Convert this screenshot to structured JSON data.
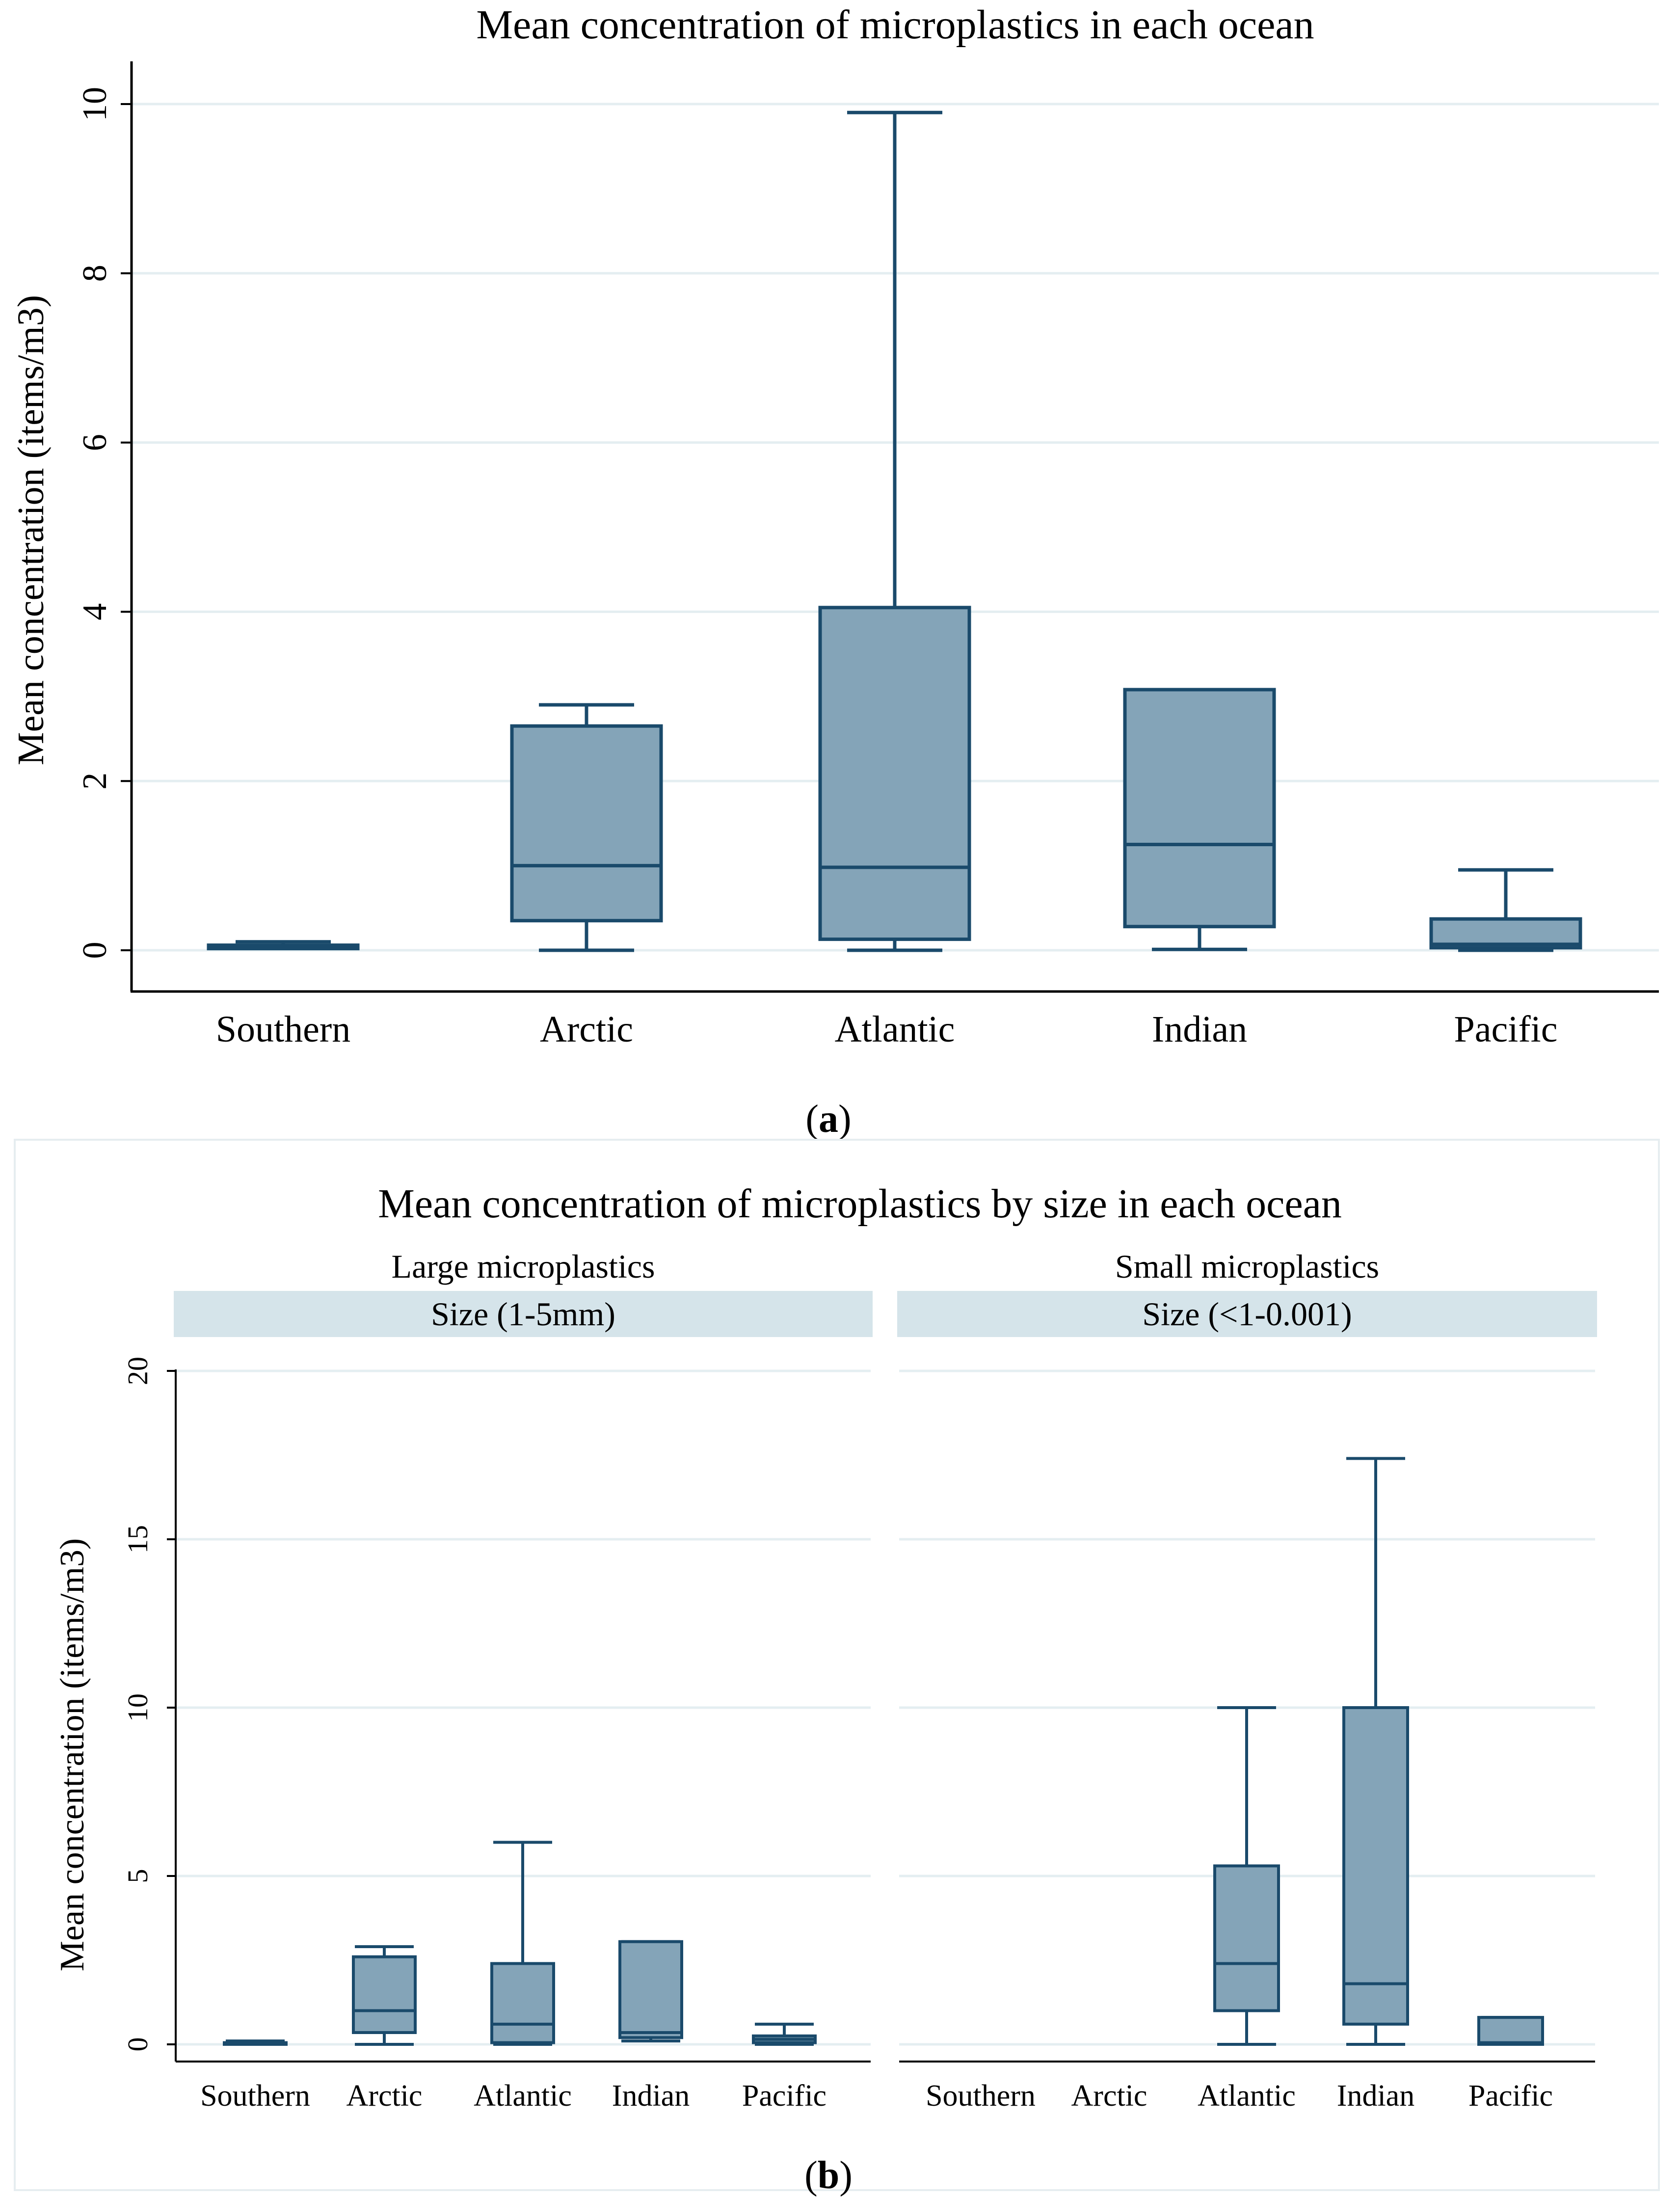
{
  "colors": {
    "box_fill": "#84a4b8",
    "box_stroke": "#1a4a6b",
    "grid": "#e4eef1",
    "strip": "#d5e4ea",
    "axis": "#000000"
  },
  "panel_labels": {
    "a": "a",
    "b": "b"
  },
  "chart_data": [
    {
      "type": "box",
      "title": "Mean concentration of microplastics in each ocean",
      "xlabel": "",
      "ylabel": "Mean concentration (items/m3)",
      "ylim": [
        0,
        10.5
      ],
      "yticks": [
        0,
        2,
        4,
        6,
        8,
        10
      ],
      "categories": [
        "Southern",
        "Arctic",
        "Atlantic",
        "Indian",
        "Pacific"
      ],
      "boxes": [
        {
          "min": 0.02,
          "q1": 0.02,
          "median": 0.04,
          "q3": 0.06,
          "max": 0.1
        },
        {
          "min": 0.0,
          "q1": 0.35,
          "median": 1.0,
          "q3": 2.65,
          "max": 2.9
        },
        {
          "min": 0.0,
          "q1": 0.13,
          "median": 0.98,
          "q3": 4.05,
          "max": 9.9
        },
        {
          "min": 0.01,
          "q1": 0.28,
          "median": 1.25,
          "q3": 3.08,
          "max": 3.08
        },
        {
          "min": 0.0,
          "q1": 0.03,
          "median": 0.07,
          "q3": 0.37,
          "max": 0.95
        }
      ]
    },
    {
      "type": "box",
      "title": "Mean concentration of microplastics by size in each ocean",
      "ylabel": "Mean concentration (items/m3)",
      "ylim": [
        0,
        20.5
      ],
      "yticks": [
        0,
        5,
        10,
        15,
        20
      ],
      "panels": [
        {
          "header": "Large microplastics",
          "strip": "Size (1-5mm)",
          "categories": [
            "Southern",
            "Arctic",
            "Atlantic",
            "Indian",
            "Pacific"
          ],
          "boxes": [
            {
              "min": 0.0,
              "q1": 0.0,
              "median": 0.02,
              "q3": 0.05,
              "max": 0.1
            },
            {
              "min": 0.0,
              "q1": 0.35,
              "median": 1.0,
              "q3": 2.6,
              "max": 2.9
            },
            {
              "min": 0.0,
              "q1": 0.05,
              "median": 0.6,
              "q3": 2.4,
              "max": 6.0
            },
            {
              "min": 0.1,
              "q1": 0.2,
              "median": 0.35,
              "q3": 3.05,
              "max": 3.05
            },
            {
              "min": 0.0,
              "q1": 0.05,
              "median": 0.15,
              "q3": 0.25,
              "max": 0.6
            }
          ]
        },
        {
          "header": "Small microplastics",
          "strip": "Size (<1-0.001)",
          "categories": [
            "Southern",
            "Arctic",
            "Atlantic",
            "Indian",
            "Pacific"
          ],
          "boxes": [
            null,
            null,
            {
              "min": 0.0,
              "q1": 1.0,
              "median": 2.4,
              "q3": 5.3,
              "max": 10.0
            },
            {
              "min": 0.0,
              "q1": 0.6,
              "median": 1.8,
              "q3": 10.0,
              "max": 17.4
            },
            {
              "min": 0.0,
              "q1": 0.0,
              "median": 0.05,
              "q3": 0.8,
              "max": 0.8
            }
          ]
        }
      ]
    }
  ]
}
